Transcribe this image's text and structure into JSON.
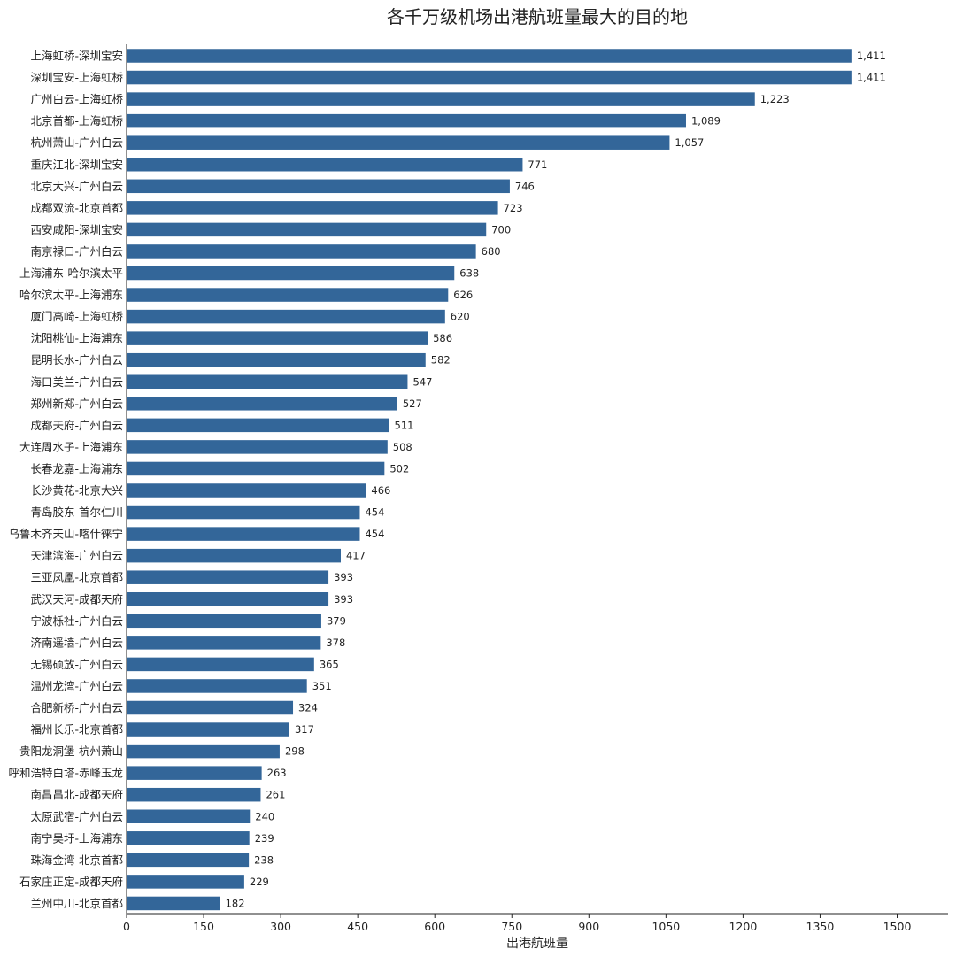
{
  "chart_data": {
    "type": "bar",
    "orientation": "horizontal",
    "title": "各千万级机场出港航班量最大的目的地",
    "xlabel": "出港航班量",
    "ylabel": "",
    "xlim": [
      0,
      1600
    ],
    "xticks": [
      "0",
      "150",
      "300",
      "450",
      "600",
      "750",
      "900",
      "1050",
      "1200",
      "1350",
      "1500"
    ],
    "xtick_values": [
      0,
      150,
      300,
      450,
      600,
      750,
      900,
      1050,
      1200,
      1350,
      1500
    ],
    "bar_color": "#336699",
    "grid": false,
    "categories": [
      "上海虹桥-深圳宝安",
      "深圳宝安-上海虹桥",
      "广州白云-上海虹桥",
      "北京首都-上海虹桥",
      "杭州萧山-广州白云",
      "重庆江北-深圳宝安",
      "北京大兴-广州白云",
      "成都双流-北京首都",
      "西安咸阳-深圳宝安",
      "南京禄口-广州白云",
      "上海浦东-哈尔滨太平",
      "哈尔滨太平-上海浦东",
      "厦门高崎-上海虹桥",
      "沈阳桃仙-上海浦东",
      "昆明长水-广州白云",
      "海口美兰-广州白云",
      "郑州新郑-广州白云",
      "成都天府-广州白云",
      "大连周水子-上海浦东",
      "长春龙嘉-上海浦东",
      "长沙黄花-北京大兴",
      "青岛胶东-首尔仁川",
      "乌鲁木齐天山-喀什徕宁",
      "天津滨海-广州白云",
      "三亚凤凰-北京首都",
      "武汉天河-成都天府",
      "宁波栎社-广州白云",
      "济南遥墙-广州白云",
      "无锡硕放-广州白云",
      "温州龙湾-广州白云",
      "合肥新桥-广州白云",
      "福州长乐-北京首都",
      "贵阳龙洞堡-杭州萧山",
      "呼和浩特白塔-赤峰玉龙",
      "南昌昌北-成都天府",
      "太原武宿-广州白云",
      "南宁吴圩-上海浦东",
      "珠海金湾-北京首都",
      "石家庄正定-成都天府",
      "兰州中川-北京首都"
    ],
    "values": [
      1411,
      1411,
      1223,
      1089,
      1057,
      771,
      746,
      723,
      700,
      680,
      638,
      626,
      620,
      586,
      582,
      547,
      527,
      511,
      508,
      502,
      466,
      454,
      454,
      417,
      393,
      393,
      379,
      378,
      365,
      351,
      324,
      317,
      298,
      263,
      261,
      240,
      239,
      238,
      229,
      182
    ],
    "value_labels": [
      "1,411",
      "1,411",
      "1,223",
      "1,089",
      "1,057",
      "771",
      "746",
      "723",
      "700",
      "680",
      "638",
      "626",
      "620",
      "586",
      "582",
      "547",
      "527",
      "511",
      "508",
      "502",
      "466",
      "454",
      "454",
      "417",
      "393",
      "393",
      "379",
      "378",
      "365",
      "351",
      "324",
      "317",
      "298",
      "263",
      "261",
      "240",
      "239",
      "238",
      "229",
      "182"
    ]
  }
}
